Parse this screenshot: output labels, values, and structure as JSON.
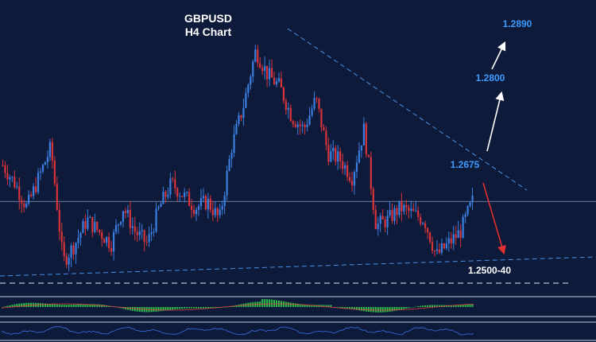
{
  "chart_data": {
    "type": "candlestick",
    "title": "GBPUSD",
    "subtitle": "H4 Chart",
    "ylim": [
      1.248,
      1.292
    ],
    "up_color": "#3b7fe0",
    "down_color": "#d8343a",
    "background": "#0e1a3a",
    "price_path": [
      1.267,
      1.264,
      1.26,
      1.265,
      1.27,
      1.251,
      1.254,
      1.258,
      1.256,
      1.254,
      1.26,
      1.256,
      1.254,
      1.26,
      1.264,
      1.262,
      1.26,
      1.261,
      1.258,
      1.27,
      1.277,
      1.286,
      1.282,
      1.28,
      1.275,
      1.273,
      1.278,
      1.269,
      1.268,
      1.265,
      1.273,
      1.257,
      1.258,
      1.26,
      1.259,
      1.258,
      1.252,
      1.254,
      1.256,
      1.261
    ],
    "trendlines": [
      {
        "name": "resistance",
        "color": "#4a8fe0",
        "style": "dashed"
      },
      {
        "name": "support",
        "color": "#4a8fe0",
        "style": "dashed"
      }
    ],
    "levels": [
      {
        "label": "1.2890",
        "value": 1.289,
        "color": "#3d9bff"
      },
      {
        "label": "1.2800",
        "value": 1.28,
        "color": "#3d9bff"
      },
      {
        "label": "1.2675",
        "value": 1.2675,
        "color": "#3d9bff"
      },
      {
        "label": "1.2500-40",
        "value": 1.25,
        "color": "#ffffff"
      }
    ],
    "current_price_line": 1.261,
    "annotations": [
      {
        "type": "arrow",
        "direction": "up",
        "color": "#ffffff",
        "target": "1.2800"
      },
      {
        "type": "arrow",
        "direction": "up",
        "color": "#ffffff",
        "target": "1.2890"
      },
      {
        "type": "arrow",
        "direction": "down",
        "color": "#e03030",
        "target": "1.2500-40"
      }
    ],
    "indicators": [
      {
        "type": "histogram",
        "name": "MACD",
        "color": "#2bbf4a"
      },
      {
        "type": "oscillator",
        "name": "RSI",
        "color": "#3b6fe0"
      }
    ]
  }
}
